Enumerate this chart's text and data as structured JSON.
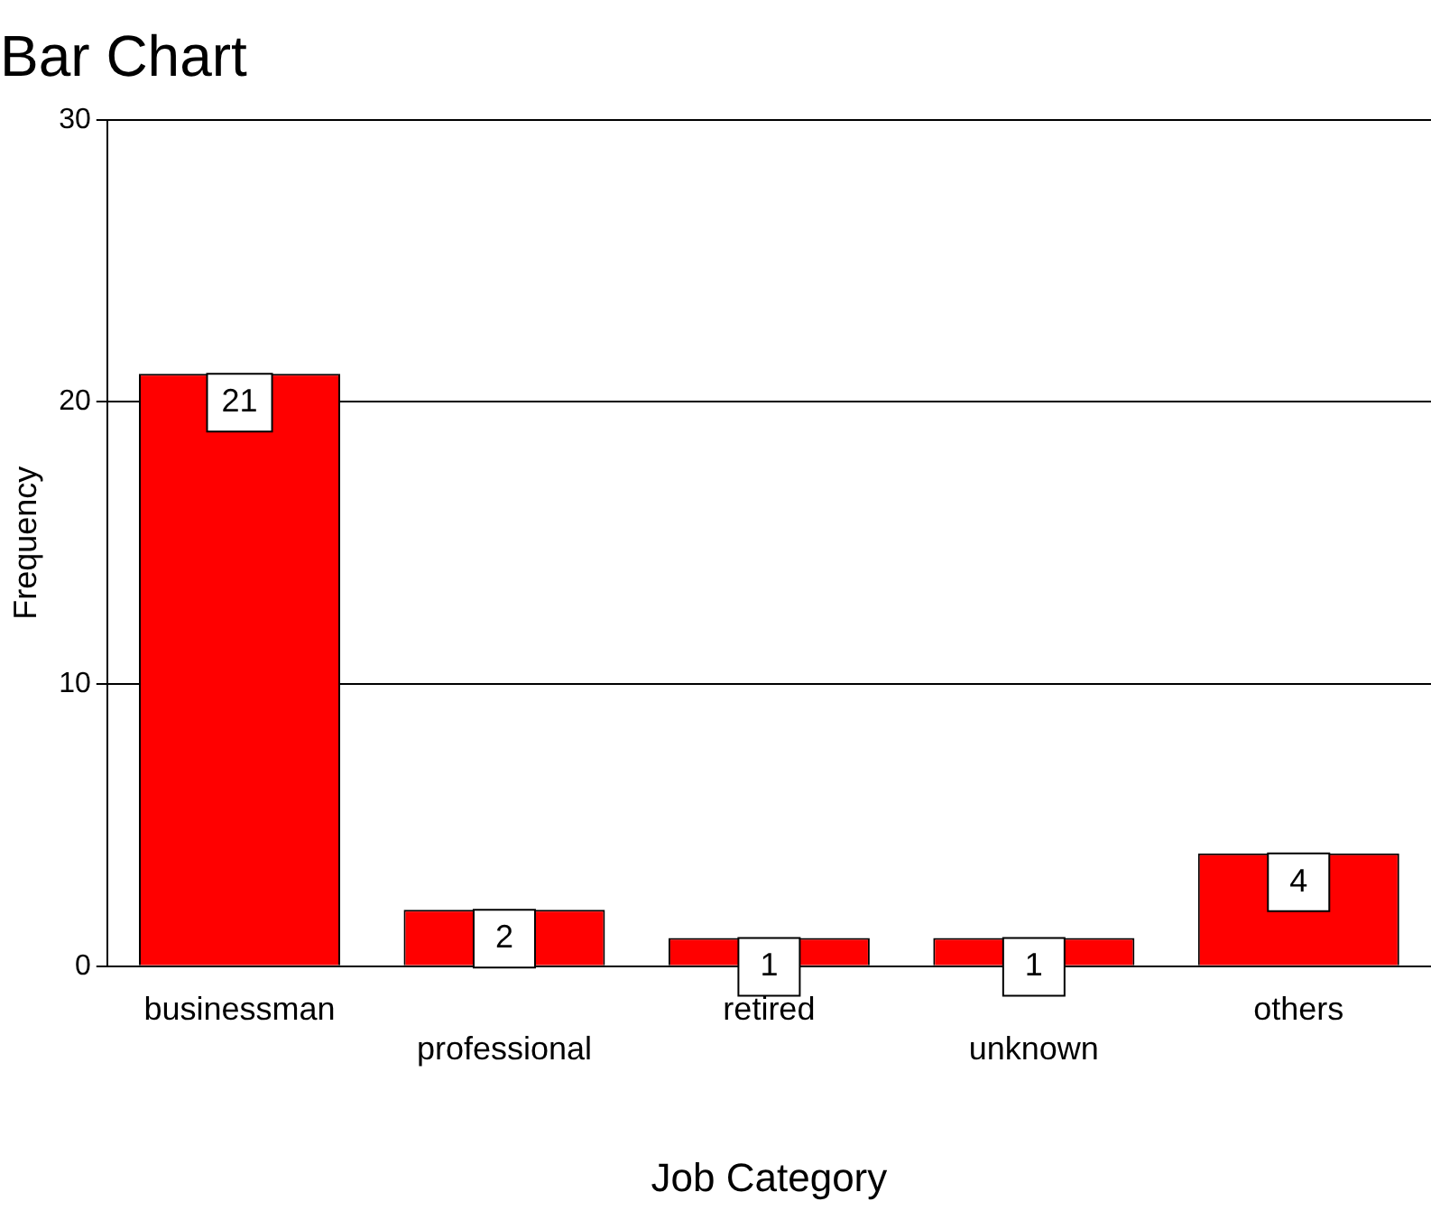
{
  "chart_data": {
    "type": "bar",
    "title": "Bar Chart",
    "xlabel": "Job Category",
    "ylabel": "Frequency",
    "categories": [
      "businessman",
      "professional",
      "retired",
      "unknown",
      "others"
    ],
    "values": [
      21,
      2,
      1,
      1,
      4
    ],
    "color": "#ff0000",
    "ylim": [
      0,
      30
    ],
    "yticks": [
      0,
      10,
      20,
      30
    ],
    "grid": "y",
    "data_labels": true
  }
}
